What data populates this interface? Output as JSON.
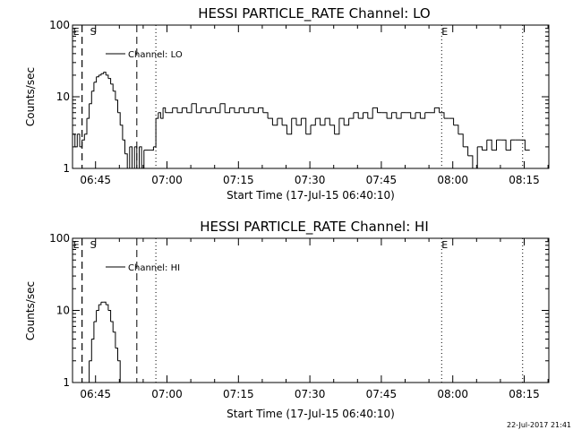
{
  "chart_data": [
    {
      "type": "line",
      "title": "HESSI PARTICLE_RATE Channel: LO",
      "xlabel": "Start Time (17-Jul-15 06:40:10)",
      "ylabel": "Counts/sec",
      "yscale": "log",
      "ylim": [
        1,
        100
      ],
      "xlim": [
        "06:40:10",
        "08:20:10"
      ],
      "x_ticks": [
        "06:45",
        "07:00",
        "07:15",
        "07:30",
        "07:45",
        "08:00",
        "08:15"
      ],
      "y_ticks": [
        "1",
        "10",
        "100"
      ],
      "legend": "top-left",
      "markers": [
        {
          "label": "E",
          "time": "06:42:10",
          "style": "dashed"
        },
        {
          "label": "S",
          "time": "06:42:10",
          "style": "dashed"
        },
        {
          "label": "",
          "time": "06:53:40",
          "style": "dashed"
        },
        {
          "label": "",
          "time": "06:57:40",
          "style": "dotted"
        },
        {
          "label": "E",
          "time": "07:57:40",
          "style": "dotted"
        },
        {
          "label": "",
          "time": "08:14:40",
          "style": "dotted"
        }
      ],
      "series": [
        {
          "name": "Channel: LO",
          "color": "#000000",
          "points": [
            [
              "06:40:10",
              3
            ],
            [
              "06:40:40",
              2
            ],
            [
              "06:41:10",
              3
            ],
            [
              "06:41:40",
              2
            ],
            [
              "06:42:10",
              2.5
            ],
            [
              "06:42:40",
              3
            ],
            [
              "06:43:10",
              5
            ],
            [
              "06:43:40",
              8
            ],
            [
              "06:44:10",
              12
            ],
            [
              "06:44:40",
              16
            ],
            [
              "06:45:10",
              19
            ],
            [
              "06:45:40",
              20
            ],
            [
              "06:46:10",
              21
            ],
            [
              "06:46:40",
              22
            ],
            [
              "06:47:10",
              20
            ],
            [
              "06:47:40",
              18
            ],
            [
              "06:48:10",
              15
            ],
            [
              "06:48:40",
              12
            ],
            [
              "06:49:10",
              9
            ],
            [
              "06:49:40",
              6
            ],
            [
              "06:50:10",
              4
            ],
            [
              "06:50:40",
              2.5
            ],
            [
              "06:51:10",
              1.6
            ],
            [
              "06:51:40",
              1
            ],
            [
              "06:52:10",
              2
            ],
            [
              "06:52:40",
              1
            ],
            [
              "06:53:10",
              2
            ],
            [
              "06:53:40",
              1
            ],
            [
              "06:54:10",
              2
            ],
            [
              "06:54:40",
              1
            ],
            [
              "06:55:10",
              1.8
            ],
            [
              "06:55:40",
              1.8
            ],
            [
              "06:56:10",
              1.8
            ],
            [
              "06:56:40",
              1.8
            ],
            [
              "06:57:10",
              2
            ],
            [
              "06:57:40",
              5
            ],
            [
              "06:58:10",
              6
            ],
            [
              "06:58:40",
              5
            ],
            [
              "06:59:10",
              7
            ],
            [
              "06:59:40",
              6
            ],
            [
              "07:00:10",
              6
            ],
            [
              "07:01:10",
              7
            ],
            [
              "07:02:10",
              6
            ],
            [
              "07:03:10",
              7
            ],
            [
              "07:04:10",
              6
            ],
            [
              "07:05:10",
              8
            ],
            [
              "07:06:10",
              6
            ],
            [
              "07:07:10",
              7
            ],
            [
              "07:08:10",
              6
            ],
            [
              "07:09:10",
              7
            ],
            [
              "07:10:10",
              6
            ],
            [
              "07:11:10",
              8
            ],
            [
              "07:12:10",
              6
            ],
            [
              "07:13:10",
              7
            ],
            [
              "07:14:10",
              6
            ],
            [
              "07:15:10",
              7
            ],
            [
              "07:16:10",
              6
            ],
            [
              "07:17:10",
              7
            ],
            [
              "07:18:10",
              6
            ],
            [
              "07:19:10",
              7
            ],
            [
              "07:20:10",
              6
            ],
            [
              "07:21:10",
              5
            ],
            [
              "07:22:10",
              4
            ],
            [
              "07:23:10",
              5
            ],
            [
              "07:24:10",
              4
            ],
            [
              "07:25:10",
              3
            ],
            [
              "07:26:10",
              5
            ],
            [
              "07:27:10",
              4
            ],
            [
              "07:28:10",
              5
            ],
            [
              "07:29:10",
              3
            ],
            [
              "07:30:10",
              4
            ],
            [
              "07:31:10",
              5
            ],
            [
              "07:32:10",
              4
            ],
            [
              "07:33:10",
              5
            ],
            [
              "07:34:10",
              4
            ],
            [
              "07:35:10",
              3
            ],
            [
              "07:36:10",
              5
            ],
            [
              "07:37:10",
              4
            ],
            [
              "07:38:10",
              5
            ],
            [
              "07:39:10",
              6
            ],
            [
              "07:40:10",
              5
            ],
            [
              "07:41:10",
              6
            ],
            [
              "07:42:10",
              5
            ],
            [
              "07:43:10",
              7
            ],
            [
              "07:44:10",
              6
            ],
            [
              "07:45:10",
              6
            ],
            [
              "07:46:10",
              5
            ],
            [
              "07:47:10",
              6
            ],
            [
              "07:48:10",
              5
            ],
            [
              "07:49:10",
              6
            ],
            [
              "07:50:10",
              6
            ],
            [
              "07:51:10",
              5
            ],
            [
              "07:52:10",
              6
            ],
            [
              "07:53:10",
              5
            ],
            [
              "07:54:10",
              6
            ],
            [
              "07:55:10",
              6
            ],
            [
              "07:56:10",
              7
            ],
            [
              "07:57:10",
              6
            ],
            [
              "07:58:10",
              5
            ],
            [
              "07:59:10",
              5
            ],
            [
              "08:00:10",
              4
            ],
            [
              "08:01:10",
              3
            ],
            [
              "08:02:10",
              2
            ],
            [
              "08:03:10",
              1.5
            ],
            [
              "08:04:10",
              1
            ],
            [
              "08:05:10",
              2
            ],
            [
              "08:06:10",
              1.8
            ],
            [
              "08:07:10",
              2.5
            ],
            [
              "08:08:10",
              1.8
            ],
            [
              "08:09:10",
              2.5
            ],
            [
              "08:10:10",
              2.5
            ],
            [
              "08:11:10",
              1.8
            ],
            [
              "08:12:10",
              2.5
            ],
            [
              "08:13:10",
              2.5
            ],
            [
              "08:14:10",
              2.5
            ],
            [
              "08:15:10",
              1.8
            ],
            [
              "08:16:10",
              1.8
            ]
          ]
        }
      ]
    },
    {
      "type": "line",
      "title": "HESSI PARTICLE_RATE Channel: HI",
      "xlabel": "Start Time (17-Jul-15 06:40:10)",
      "ylabel": "Counts/sec",
      "yscale": "log",
      "ylim": [
        1,
        100
      ],
      "xlim": [
        "06:40:10",
        "08:20:10"
      ],
      "x_ticks": [
        "06:45",
        "07:00",
        "07:15",
        "07:30",
        "07:45",
        "08:00",
        "08:15"
      ],
      "y_ticks": [
        "1",
        "10",
        "100"
      ],
      "legend": "top-left",
      "markers": [
        {
          "label": "E",
          "time": "06:42:10",
          "style": "dashed"
        },
        {
          "label": "S",
          "time": "06:42:10",
          "style": "dashed"
        },
        {
          "label": "",
          "time": "06:53:40",
          "style": "dashed"
        },
        {
          "label": "",
          "time": "06:57:40",
          "style": "dotted"
        },
        {
          "label": "E",
          "time": "07:57:40",
          "style": "dotted"
        },
        {
          "label": "",
          "time": "08:14:40",
          "style": "dotted"
        }
      ],
      "series": [
        {
          "name": "Channel: HI",
          "color": "#000000",
          "points": [
            [
              "06:43:10",
              1
            ],
            [
              "06:43:40",
              2
            ],
            [
              "06:44:10",
              4
            ],
            [
              "06:44:40",
              7
            ],
            [
              "06:45:10",
              10
            ],
            [
              "06:45:40",
              12
            ],
            [
              "06:46:10",
              13
            ],
            [
              "06:46:40",
              13
            ],
            [
              "06:47:10",
              12
            ],
            [
              "06:47:40",
              10
            ],
            [
              "06:48:10",
              7
            ],
            [
              "06:48:40",
              5
            ],
            [
              "06:49:10",
              3
            ],
            [
              "06:49:40",
              2
            ],
            [
              "06:50:10",
              1
            ]
          ]
        }
      ]
    }
  ],
  "footer": {
    "stamp": "22-Jul-2017 21:41"
  }
}
